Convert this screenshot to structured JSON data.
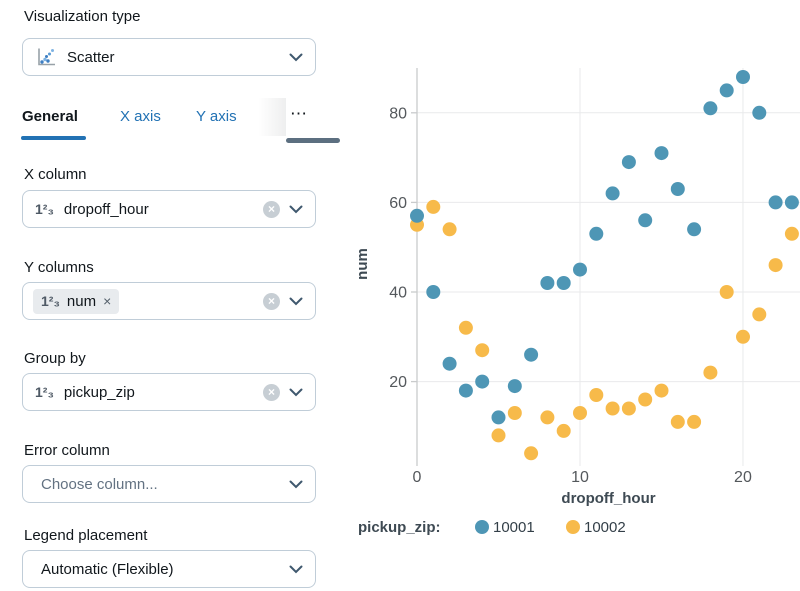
{
  "panel": {
    "viz_type_label": "Visualization type",
    "viz_type_value": "Scatter",
    "tabs": {
      "general": "General",
      "x_axis": "X axis",
      "y_axis": "Y axis",
      "overflow": "⋯"
    },
    "x_column": {
      "label": "X column",
      "value": "dropoff_hour"
    },
    "y_columns": {
      "label": "Y columns",
      "chip": "num"
    },
    "group_by": {
      "label": "Group by",
      "value": "pickup_zip"
    },
    "error_column": {
      "label": "Error column",
      "placeholder": "Choose column..."
    },
    "legend_placement": {
      "label": "Legend placement",
      "value": "Automatic (Flexible)"
    }
  },
  "icons": {
    "number_type": "1²₃",
    "clear": "×",
    "chip_remove": "×"
  },
  "colors": {
    "accent": "#2272B4",
    "series_10001": "#4E96B5",
    "series_10002": "#F7BA4A",
    "gridline": "#E9EAEB",
    "axis_line": "#C9CBCC",
    "tick_text": "#54585C",
    "axis_title_text": "#3E4A53"
  },
  "chart_data": {
    "type": "scatter",
    "x": [
      0,
      1,
      2,
      3,
      4,
      5,
      6,
      7,
      8,
      9,
      10,
      11,
      12,
      13,
      14,
      15,
      16,
      17,
      18,
      19,
      20,
      21,
      22,
      23
    ],
    "series": [
      {
        "name": "10001",
        "color": "#4E96B5",
        "values": [
          57,
          40,
          24,
          18,
          20,
          12,
          19,
          26,
          42,
          42,
          45,
          53,
          62,
          69,
          56,
          71,
          63,
          54,
          81,
          85,
          88,
          80,
          60,
          60
        ]
      },
      {
        "name": "10002",
        "color": "#F7BA4A",
        "values": [
          55,
          59,
          54,
          32,
          27,
          8,
          13,
          4,
          12,
          9,
          13,
          17,
          14,
          14,
          16,
          18,
          11,
          11,
          22,
          40,
          30,
          35,
          46,
          53
        ]
      }
    ],
    "title": "",
    "xlabel": "dropoff_hour",
    "ylabel": "num",
    "x_ticks": [
      0,
      10,
      20
    ],
    "y_ticks": [
      20,
      40,
      60,
      80
    ],
    "xlim": [
      0,
      23.5
    ],
    "ylim": [
      2.5,
      90
    ],
    "grid": true,
    "legend_title": "pickup_zip:",
    "legend_position": "bottom"
  }
}
